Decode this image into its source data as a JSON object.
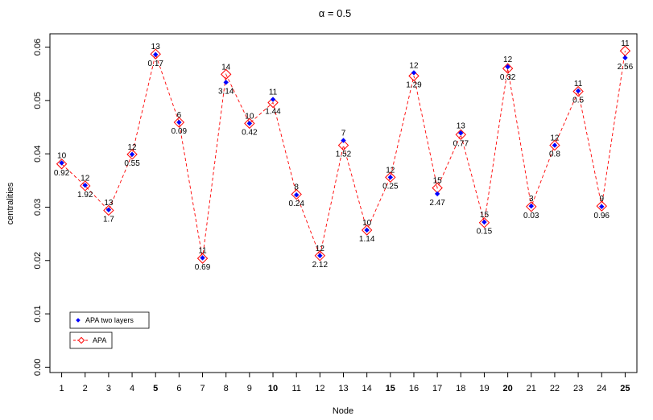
{
  "chart_data": {
    "type": "line",
    "title": "α = 0.5",
    "xlabel": "Node",
    "ylabel": "centralities",
    "x": [
      1,
      2,
      3,
      4,
      5,
      6,
      7,
      8,
      9,
      10,
      11,
      12,
      13,
      14,
      15,
      16,
      17,
      18,
      19,
      20,
      21,
      22,
      23,
      24,
      25
    ],
    "x_tick_labels": [
      "1",
      "2",
      "3",
      "4",
      "5",
      "6",
      "7",
      "8",
      "9",
      "10",
      "11",
      "12",
      "13",
      "14",
      "15",
      "16",
      "17",
      "18",
      "19",
      "20",
      "21",
      "22",
      "23",
      "24",
      "25"
    ],
    "bold_x_ticks": [
      5,
      10,
      15,
      20,
      25
    ],
    "xlim": [
      0.5,
      25.5
    ],
    "ylim": [
      -0.001,
      0.0625
    ],
    "y_ticks": [
      0.0,
      0.01,
      0.02,
      0.03,
      0.04,
      0.05,
      0.06
    ],
    "y_tick_labels": [
      "0.00",
      "0.01",
      "0.02",
      "0.03",
      "0.04",
      "0.05",
      "0.06"
    ],
    "grid": false,
    "legend_position": "bottom-left",
    "series": [
      {
        "name": "APA two layers",
        "color": "#0000ff",
        "marker": "filled-diamond",
        "values": [
          0.0383,
          0.0341,
          0.0295,
          0.0399,
          0.0586,
          0.0459,
          0.0205,
          0.0534,
          0.0457,
          0.0502,
          0.0323,
          0.0209,
          0.0425,
          0.0257,
          0.0356,
          0.0552,
          0.0325,
          0.0439,
          0.0272,
          0.0563,
          0.0302,
          0.0416,
          0.0518,
          0.0301,
          0.058
        ],
        "point_labels": [
          "10",
          "12",
          "13",
          "12",
          "13",
          "6",
          "11",
          "14",
          "10",
          "11",
          "8",
          "12",
          "7",
          "10",
          "12",
          "12",
          "15",
          "13",
          "15",
          "12",
          "3",
          "12",
          "11",
          "9",
          "11"
        ]
      },
      {
        "name": "APA",
        "color": "#ff0000",
        "marker": "open-diamond",
        "line_style": "dashed",
        "values": [
          0.0381,
          0.034,
          0.0294,
          0.0399,
          0.0587,
          0.0459,
          0.0204,
          0.0549,
          0.0457,
          0.0496,
          0.0324,
          0.0209,
          0.0416,
          0.0257,
          0.0356,
          0.0546,
          0.0336,
          0.0436,
          0.0271,
          0.056,
          0.0301,
          0.0416,
          0.0517,
          0.0302,
          0.0593
        ],
        "point_labels": [
          "0.92",
          "1.92",
          "1.7",
          "0.55",
          "0.17",
          "0.09",
          "0.69",
          "3.14",
          "0.42",
          "1.44",
          "0.24",
          "2.12",
          "1.52",
          "1.14",
          "0.25",
          "1.29",
          "2.47",
          "0.77",
          "0.15",
          "0.32",
          "0.03",
          "0.8",
          "0.5",
          "0.96",
          "2.56"
        ]
      }
    ]
  }
}
